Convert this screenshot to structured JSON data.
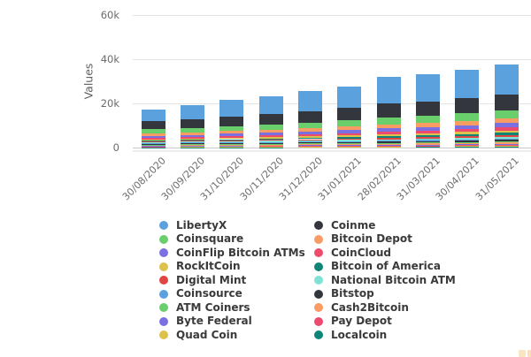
{
  "chart_data": {
    "type": "bar",
    "stacked": true,
    "title": "",
    "xlabel": "",
    "ylabel": "Values",
    "ylim": [
      0,
      60000
    ],
    "grid": true,
    "legend_position": "bottom",
    "yticks": [
      {
        "value": 0,
        "label": "0"
      },
      {
        "value": 20000,
        "label": "20k"
      },
      {
        "value": 40000,
        "label": "40k"
      },
      {
        "value": 60000,
        "label": "60k"
      }
    ],
    "categories": [
      "30/08/2020",
      "30/09/2020",
      "31/10/2020",
      "30/11/2020",
      "31/12/2020",
      "31/01/2021",
      "28/02/2021",
      "31/03/2021",
      "30/04/2021",
      "31/05/2021"
    ],
    "series": [
      {
        "name": "LibertyX",
        "color": "#5ba1dd",
        "values": [
          5250,
          6290,
          7530,
          8050,
          9120,
          9610,
          12050,
          12300,
          12820,
          13510
        ]
      },
      {
        "name": "Coinme",
        "color": "#33363c",
        "values": [
          3600,
          3900,
          4300,
          4700,
          5100,
          5500,
          6400,
          6600,
          6900,
          7300
        ]
      },
      {
        "name": "Coinsquare",
        "color": "#69ce6b",
        "values": [
          1900,
          2050,
          2200,
          2350,
          2550,
          2750,
          3000,
          3100,
          3300,
          3500
        ]
      },
      {
        "name": "Bitcoin Depot",
        "color": "#f89c63",
        "values": [
          1000,
          1100,
          1200,
          1300,
          1450,
          1600,
          1750,
          1850,
          2000,
          2200
        ]
      },
      {
        "name": "CoinFlip Bitcoin ATMs",
        "color": "#7b70e2",
        "values": [
          900,
          1000,
          1100,
          1200,
          1300,
          1450,
          1600,
          1700,
          1850,
          2000
        ]
      },
      {
        "name": "CoinCloud",
        "color": "#ee4a6d",
        "values": [
          650,
          700,
          780,
          860,
          950,
          1050,
          1150,
          1200,
          1300,
          1400
        ]
      },
      {
        "name": "RockItCoin",
        "color": "#ddc14b",
        "values": [
          500,
          540,
          590,
          650,
          720,
          780,
          870,
          920,
          1000,
          1100
        ]
      },
      {
        "name": "Bitcoin of America",
        "color": "#0f8577",
        "values": [
          450,
          480,
          520,
          560,
          610,
          660,
          730,
          780,
          850,
          950
        ]
      },
      {
        "name": "Digital Mint",
        "color": "#e04543",
        "values": [
          400,
          430,
          470,
          510,
          550,
          600,
          660,
          700,
          770,
          850
        ]
      },
      {
        "name": "National Bitcoin ATM",
        "color": "#7fe3d3",
        "values": [
          380,
          400,
          430,
          460,
          500,
          540,
          590,
          630,
          690,
          760
        ]
      },
      {
        "name": "Coinsource",
        "color": "#5ba1dd",
        "values": [
          350,
          370,
          400,
          430,
          460,
          500,
          540,
          580,
          630,
          700
        ]
      },
      {
        "name": "Bitstop",
        "color": "#33363c",
        "values": [
          330,
          350,
          370,
          400,
          430,
          460,
          500,
          530,
          580,
          640
        ]
      },
      {
        "name": "ATM Coiners",
        "color": "#69ce6b",
        "values": [
          300,
          320,
          340,
          360,
          390,
          420,
          450,
          480,
          520,
          580
        ]
      },
      {
        "name": "Cash2Bitcoin",
        "color": "#f89c63",
        "values": [
          270,
          290,
          310,
          330,
          350,
          380,
          410,
          440,
          480,
          530
        ]
      },
      {
        "name": "Byte Federal",
        "color": "#7b70e2",
        "values": [
          250,
          270,
          290,
          310,
          330,
          350,
          380,
          410,
          440,
          490
        ]
      },
      {
        "name": "Pay Depot",
        "color": "#ee4a6d",
        "values": [
          220,
          240,
          260,
          280,
          300,
          320,
          350,
          370,
          400,
          440
        ]
      },
      {
        "name": "Quad Coin",
        "color": "#ddc14b",
        "values": [
          200,
          210,
          230,
          250,
          270,
          290,
          310,
          330,
          360,
          400
        ]
      },
      {
        "name": "Localcoin",
        "color": "#0f8577",
        "values": [
          150,
          160,
          180,
          200,
          220,
          240,
          260,
          280,
          310,
          350
        ]
      }
    ]
  },
  "legend": {
    "columns": [
      [
        0,
        2,
        4,
        6,
        8,
        10,
        12,
        14,
        16
      ],
      [
        1,
        3,
        5,
        7,
        9,
        11,
        13,
        15,
        17
      ]
    ]
  },
  "watermark": {
    "color_a": "#f4b44a",
    "color_b": "#ef9f3e"
  }
}
